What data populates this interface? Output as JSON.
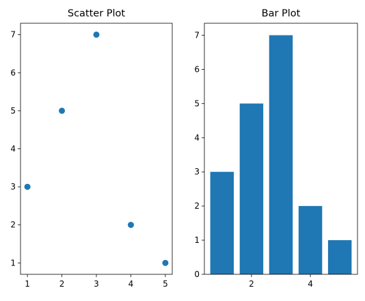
{
  "chart_data": [
    {
      "type": "scatter",
      "title": "Scatter Plot",
      "x": [
        1,
        2,
        3,
        4,
        5
      ],
      "y": [
        3,
        5,
        7,
        2,
        1
      ],
      "xlim": [
        0.8,
        5.2
      ],
      "ylim": [
        0.7,
        7.3
      ],
      "xticks": [
        1,
        2,
        3,
        4,
        5
      ],
      "yticks": [
        1,
        2,
        3,
        4,
        5,
        6,
        7
      ],
      "xlabel": "",
      "ylabel": "",
      "grid": false,
      "color": "#1f77b4"
    },
    {
      "type": "bar",
      "title": "Bar Plot",
      "x": [
        1,
        2,
        3,
        4,
        5
      ],
      "values": [
        3,
        5,
        7,
        2,
        1
      ],
      "xlim": [
        0.4,
        5.6
      ],
      "ylim": [
        0,
        7.35
      ],
      "xticks": [
        2,
        4
      ],
      "yticks": [
        0,
        1,
        2,
        3,
        4,
        5,
        6,
        7
      ],
      "xlabel": "",
      "ylabel": "",
      "grid": false,
      "color": "#1f77b4"
    }
  ]
}
